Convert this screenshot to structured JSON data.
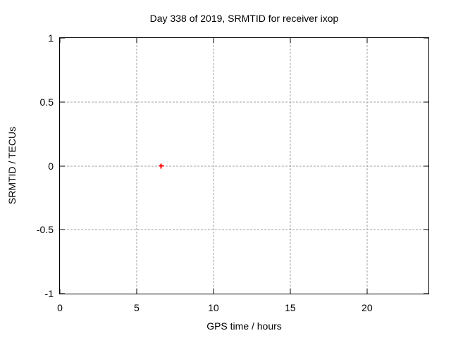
{
  "chart_data": {
    "type": "scatter",
    "title": "Day 338 of 2019, SRMTID for receiver ixop",
    "xlabel": "GPS time / hours",
    "ylabel": "SRMTID / TECUs",
    "xlim": [
      0,
      24
    ],
    "ylim": [
      -1,
      1
    ],
    "xticks": [
      0,
      5,
      10,
      15,
      20
    ],
    "yticks": [
      1,
      0.5,
      0,
      -0.5,
      -1
    ],
    "grid": true,
    "grid_style": "dashed",
    "legend_position": "none",
    "series": [
      {
        "name": "SRMTID",
        "marker": "plus",
        "color": "#ff0000",
        "points": [
          {
            "x": 6.6,
            "y": 0
          }
        ]
      }
    ]
  },
  "colors": {
    "background": "#ffffff",
    "axis": "#000000",
    "grid": "#a0a0a0",
    "text": "#000000",
    "marker": "#ff0000"
  }
}
